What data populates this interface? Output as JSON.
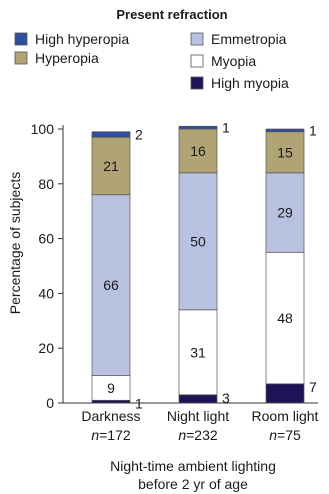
{
  "chart_data": {
    "type": "bar",
    "stacked": true,
    "legend_title": "Present refraction",
    "legend_placement": "top",
    "categories": [
      "Darkness",
      "Night light",
      "Room light"
    ],
    "category_n": [
      "n=172",
      "n=232",
      "n=75"
    ],
    "series": [
      {
        "name": "High myopia",
        "values": [
          1,
          3,
          7
        ],
        "color": "#1c1456",
        "labels": [
          "1",
          "3",
          "7"
        ]
      },
      {
        "name": "Myopia",
        "values": [
          9,
          31,
          48
        ],
        "color": "#ffffff",
        "labels": [
          "9",
          "31",
          "48"
        ]
      },
      {
        "name": "Emmetropia",
        "values": [
          66,
          50,
          29
        ],
        "color": "#b8c2e0",
        "labels": [
          "66",
          "50",
          "29"
        ]
      },
      {
        "name": "Hyperopia",
        "values": [
          21,
          16,
          15
        ],
        "color": "#b0a475",
        "labels": [
          "21",
          "16",
          "15"
        ]
      },
      {
        "name": "High hyperopia",
        "values": [
          2,
          1,
          1
        ],
        "color": "#2e4fa0",
        "labels": [
          "2",
          "1",
          "1"
        ]
      }
    ],
    "legend_order": [
      "High hyperopia",
      "Hyperopia",
      "Emmetropia",
      "Myopia",
      "High myopia"
    ],
    "ylabel": "Percentage of subjects",
    "xlabel_lines": [
      "Night-time ambient lighting",
      "before 2 yr of age"
    ],
    "ylim": [
      0,
      100
    ],
    "yticks": [
      0,
      20,
      40,
      60,
      80,
      100
    ],
    "grid": false
  }
}
